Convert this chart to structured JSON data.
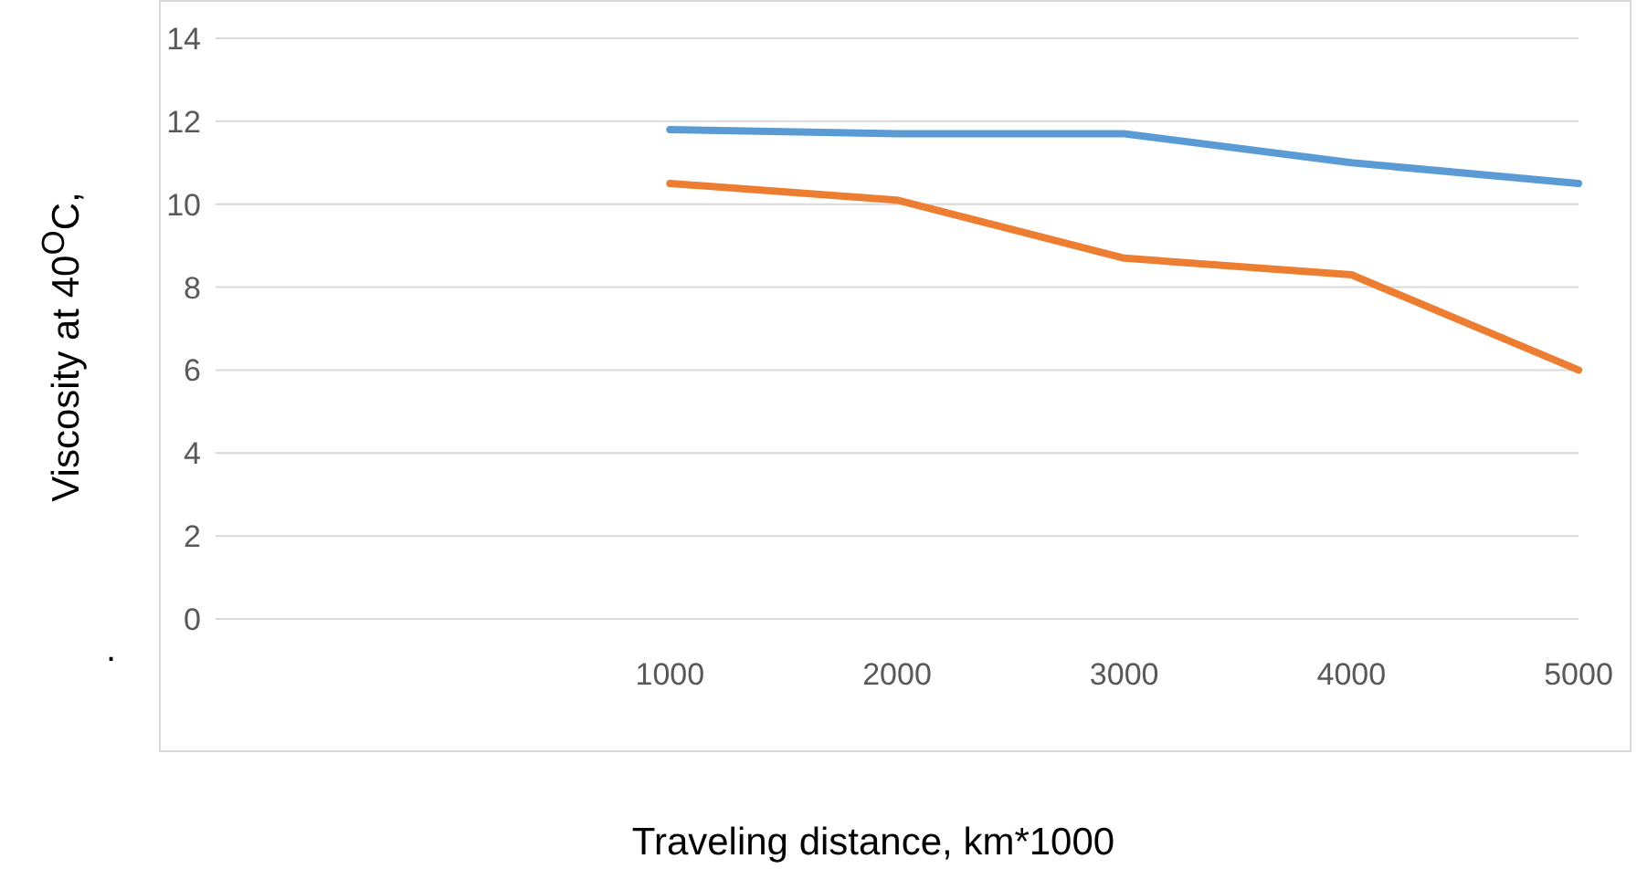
{
  "chart_data": {
    "type": "line",
    "xlabel": "Traveling distance, km*1000",
    "ylabel": "Viscosity at 40$^{O}$C,",
    "annotations": [
      "."
    ],
    "categories": [
      null,
      null,
      "1000",
      "2000",
      "3000",
      "4000",
      "5000"
    ],
    "series": [
      {
        "color": "#5b9bd5",
        "values": [
          null,
          null,
          11.8,
          11.7,
          11.7,
          11.0,
          10.5
        ]
      },
      {
        "color": "#ed7d31",
        "values": [
          null,
          null,
          10.5,
          10.1,
          8.7,
          8.3,
          6.0
        ]
      }
    ],
    "ylim": [
      0,
      14
    ],
    "yticks": [
      0,
      2,
      4,
      6,
      8,
      10,
      12,
      14
    ],
    "grid": "y",
    "legend": false,
    "marker": "none",
    "line_style": "solid"
  }
}
